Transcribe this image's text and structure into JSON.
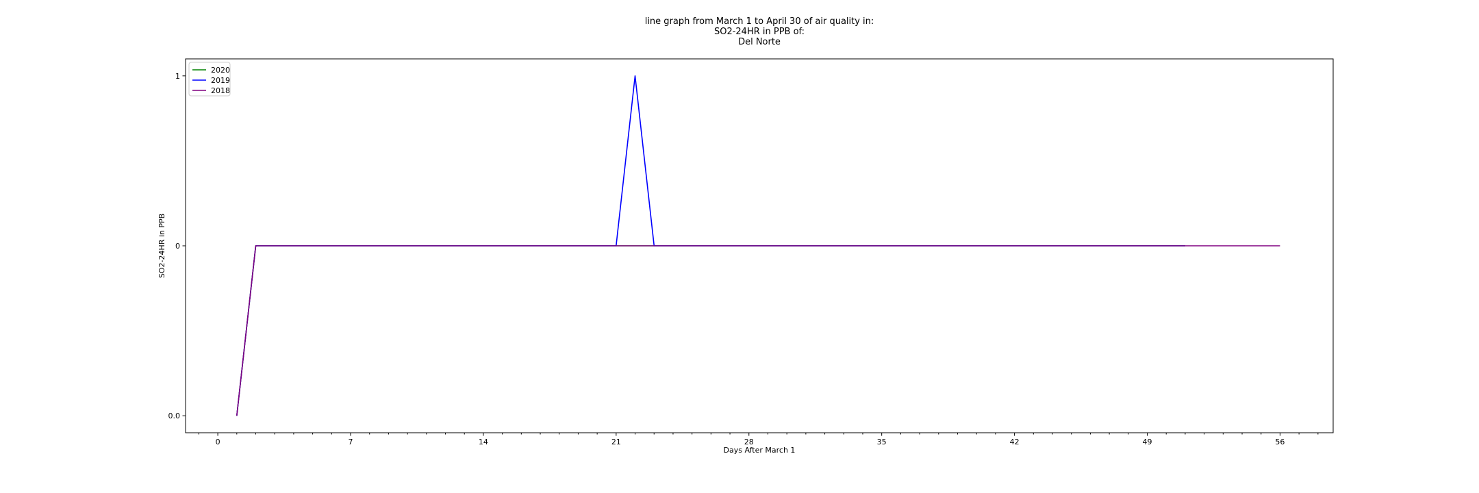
{
  "chart_data": {
    "type": "line",
    "title_lines": [
      "line graph from March 1 to April 30 of air quality in:",
      "SO2-24HR in PPB of:",
      "Del Norte"
    ],
    "xlabel": "Days After March 1",
    "ylabel": "SO2-24HR in PPB",
    "x_ticks": [
      0,
      7,
      14,
      21,
      28,
      35,
      42,
      49,
      56
    ],
    "y_ticks": [
      {
        "value": 0,
        "label": "0.0"
      },
      {
        "value": 1,
        "label": "0"
      },
      {
        "value": 2,
        "label": "1"
      }
    ],
    "xlim": [
      -1.7,
      58.8
    ],
    "ylim": [
      -0.1,
      2.1
    ],
    "grid": false,
    "legend_position": "upper-left",
    "series": [
      {
        "name": "2020",
        "color": "#008000",
        "x": [
          1,
          2,
          51
        ],
        "y": [
          0,
          1,
          1
        ]
      },
      {
        "name": "2019",
        "color": "#0000ff",
        "x": [
          1,
          2,
          21,
          22,
          23,
          51
        ],
        "y": [
          0,
          1,
          1,
          2,
          1,
          1
        ]
      },
      {
        "name": "2018",
        "color": "#800080",
        "x": [
          1,
          2,
          56
        ],
        "y": [
          0,
          1,
          1
        ]
      }
    ]
  }
}
